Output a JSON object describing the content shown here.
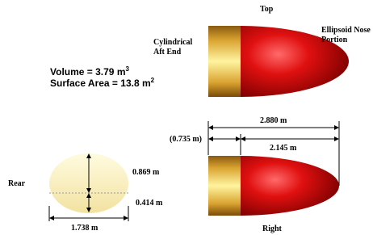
{
  "views": {
    "top": "Top",
    "right": "Right",
    "rear": "Rear"
  },
  "parts": {
    "aft": [
      "Cylindrical",
      "Aft End"
    ],
    "nose": [
      "Ellipsoid Nose",
      "Portion"
    ]
  },
  "properties": {
    "volume": {
      "text": "Volume = 3.79 m",
      "sup": "3"
    },
    "surface_area": {
      "text": "Surface Area = 13.8 m",
      "sup": "2"
    }
  },
  "dimensions": {
    "total_length": "2.880 m",
    "aft_length": "(0.735 m)",
    "nose_length": "2.145 m",
    "upper_height": "0.869 m",
    "lower_height": "0.414 m",
    "width": "1.738 m"
  }
}
